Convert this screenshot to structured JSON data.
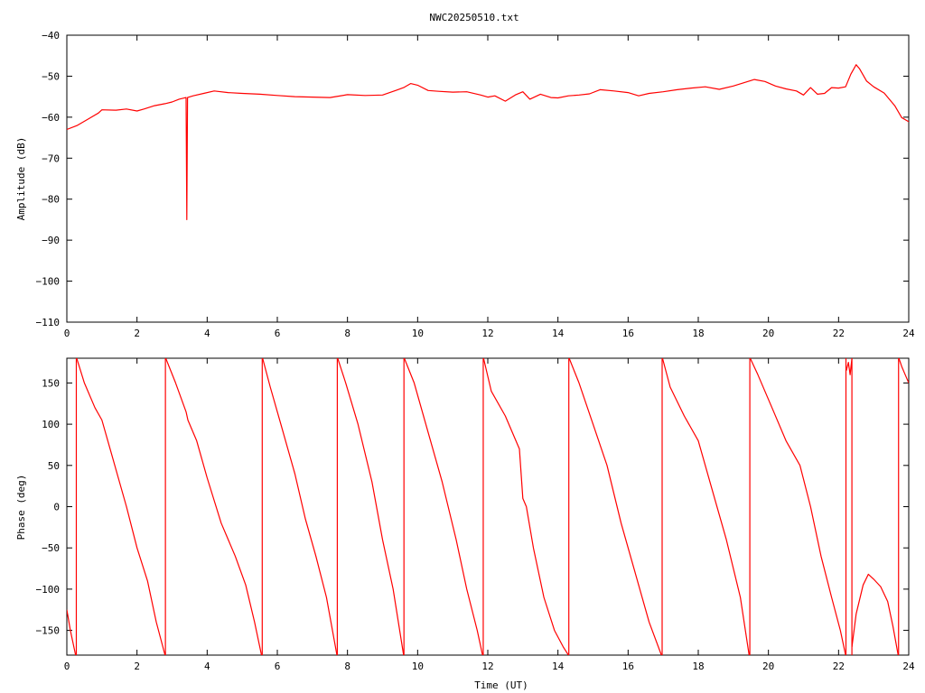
{
  "title": "NWC20250510.txt",
  "colors": {
    "series": "#ff0000",
    "axis": "#000000",
    "background": "#ffffff"
  },
  "chart_data": [
    {
      "type": "line",
      "ylabel": "Amplitude (dB)",
      "xlabel": "",
      "xlim": [
        0,
        24
      ],
      "ylim": [
        -110,
        -40
      ],
      "x_ticks": [
        0,
        2,
        4,
        6,
        8,
        10,
        12,
        14,
        16,
        18,
        20,
        22,
        24
      ],
      "y_ticks": [
        -40,
        -50,
        -60,
        -70,
        -80,
        -90,
        -100,
        -110
      ],
      "grid": false,
      "series": [
        {
          "x": [
            0,
            0.3,
            0.6,
            0.9,
            1.0,
            1.4,
            1.7,
            2.0,
            2.2,
            2.5,
            2.8,
            3.0,
            3.2,
            3.4,
            3.42,
            3.44,
            3.6,
            3.9,
            4.2,
            4.6,
            5.0,
            5.5,
            6.0,
            6.5,
            7.0,
            7.5,
            8.0,
            8.5,
            9.0,
            9.4,
            9.6,
            9.8,
            10.0,
            10.3,
            10.6,
            11.0,
            11.4,
            11.8,
            12.0,
            12.2,
            12.5,
            12.8,
            13.0,
            13.2,
            13.5,
            13.8,
            14.0,
            14.3,
            14.6,
            14.9,
            15.2,
            15.6,
            16.0,
            16.3,
            16.6,
            17.0,
            17.4,
            17.8,
            18.2,
            18.6,
            19.0,
            19.3,
            19.6,
            19.9,
            20.2,
            20.5,
            20.8,
            21.0,
            21.2,
            21.4,
            21.6,
            21.8,
            22.0,
            22.2,
            22.35,
            22.5,
            22.6,
            22.8,
            23.0,
            23.3,
            23.6,
            23.8,
            24.0
          ],
          "values": [
            -63,
            -62,
            -60.5,
            -59,
            -58.2,
            -58.3,
            -58,
            -58.5,
            -58,
            -57.2,
            -56.7,
            -56.3,
            -55.6,
            -55.2,
            -85,
            -55.2,
            -54.8,
            -54.2,
            -53.6,
            -54,
            -54.2,
            -54.4,
            -54.7,
            -55,
            -55.1,
            -55.2,
            -54.5,
            -54.7,
            -54.6,
            -53.4,
            -52.8,
            -51.8,
            -52.2,
            -53.5,
            -53.7,
            -53.9,
            -53.8,
            -54.6,
            -55.1,
            -54.8,
            -56.1,
            -54.5,
            -53.8,
            -55.6,
            -54.4,
            -55.2,
            -55.3,
            -54.8,
            -54.6,
            -54.3,
            -53.3,
            -53.6,
            -54,
            -54.8,
            -54.2,
            -53.8,
            -53.3,
            -52.9,
            -52.6,
            -53.2,
            -52.4,
            -51.6,
            -50.8,
            -51.3,
            -52.4,
            -53.1,
            -53.6,
            -54.6,
            -52.8,
            -54.4,
            -54.2,
            -52.8,
            -52.9,
            -52.6,
            -49.5,
            -47.2,
            -48.2,
            -51.2,
            -52.6,
            -54.1,
            -57.2,
            -60.1,
            -61.1
          ]
        }
      ]
    },
    {
      "type": "line",
      "ylabel": "Phase (deg)",
      "xlabel": "Time (UT)",
      "xlim": [
        0,
        24
      ],
      "ylim": [
        -180,
        180
      ],
      "x_ticks": [
        0,
        2,
        4,
        6,
        8,
        10,
        12,
        14,
        16,
        18,
        20,
        22,
        24
      ],
      "y_ticks": [
        150,
        100,
        50,
        0,
        -50,
        -100,
        -150
      ],
      "grid": false,
      "series": [
        {
          "segments": [
            {
              "x": [
                0,
                0.1,
                0.25
              ],
              "values": [
                -125,
                -150,
                -180
              ]
            },
            {
              "x": [
                0.28,
                0.5,
                0.8,
                1.0,
                1.3,
                1.7,
                2.0,
                2.3,
                2.55,
                2.8
              ],
              "values": [
                180,
                150,
                120,
                105,
                60,
                0,
                -50,
                -90,
                -140,
                -180
              ]
            },
            {
              "x": [
                2.82,
                3.1,
                3.4,
                3.45,
                3.7,
                4.0,
                4.4,
                4.8,
                5.1,
                5.35,
                5.55
              ],
              "values": [
                180,
                150,
                115,
                105,
                80,
                35,
                -20,
                -60,
                -95,
                -140,
                -180
              ]
            },
            {
              "x": [
                5.58,
                5.8,
                6.1,
                6.5,
                6.8,
                7.1,
                7.4,
                7.7
              ],
              "values": [
                180,
                145,
                100,
                40,
                -15,
                -60,
                -110,
                -180
              ]
            },
            {
              "x": [
                7.72,
                7.95,
                8.3,
                8.7,
                9.0,
                9.3,
                9.6
              ],
              "values": [
                180,
                150,
                100,
                30,
                -40,
                -100,
                -180
              ]
            },
            {
              "x": [
                9.62,
                9.9,
                10.3,
                10.7,
                11.1,
                11.4,
                11.7,
                11.85
              ],
              "values": [
                180,
                150,
                90,
                30,
                -40,
                -100,
                -150,
                -180
              ]
            },
            {
              "x": [
                11.88,
                12.1,
                12.5,
                12.9,
                13.0,
                13.1,
                13.3,
                13.6,
                13.9,
                14.15,
                14.3
              ],
              "values": [
                180,
                140,
                110,
                70,
                10,
                0,
                -50,
                -110,
                -150,
                -170,
                -180
              ]
            },
            {
              "x": [
                14.32,
                14.6,
                15.0,
                15.4,
                15.8,
                16.2,
                16.6,
                16.95
              ],
              "values": [
                180,
                150,
                100,
                50,
                -20,
                -80,
                -140,
                -180
              ]
            },
            {
              "x": [
                16.98,
                17.2,
                17.6,
                18.0,
                18.4,
                18.8,
                19.2,
                19.45
              ],
              "values": [
                180,
                145,
                110,
                80,
                20,
                -40,
                -110,
                -180
              ]
            },
            {
              "x": [
                19.48,
                19.7,
                20.1,
                20.5,
                20.9,
                21.2,
                21.5,
                21.8,
                22.05,
                22.2
              ],
              "values": [
                180,
                160,
                120,
                80,
                50,
                0,
                -60,
                -110,
                -150,
                -180
              ]
            },
            {
              "x": [
                22.22,
                22.28,
                22.33,
                22.38
              ],
              "values": [
                165,
                175,
                160,
                180
              ]
            },
            {
              "x": [
                22.38,
                22.5,
                22.7,
                22.85,
                23.0,
                23.2,
                23.4,
                23.55,
                23.7
              ],
              "values": [
                -170,
                -130,
                -95,
                -82,
                -88,
                -97,
                -115,
                -145,
                -180
              ]
            },
            {
              "x": [
                23.72,
                23.8,
                23.9,
                24.0
              ],
              "values": [
                180,
                170,
                160,
                150
              ]
            }
          ],
          "wrap_x": [
            0.27,
            2.81,
            5.57,
            7.71,
            9.61,
            11.87,
            14.31,
            16.97,
            19.47,
            22.21,
            22.38,
            23.71
          ]
        }
      ]
    }
  ]
}
